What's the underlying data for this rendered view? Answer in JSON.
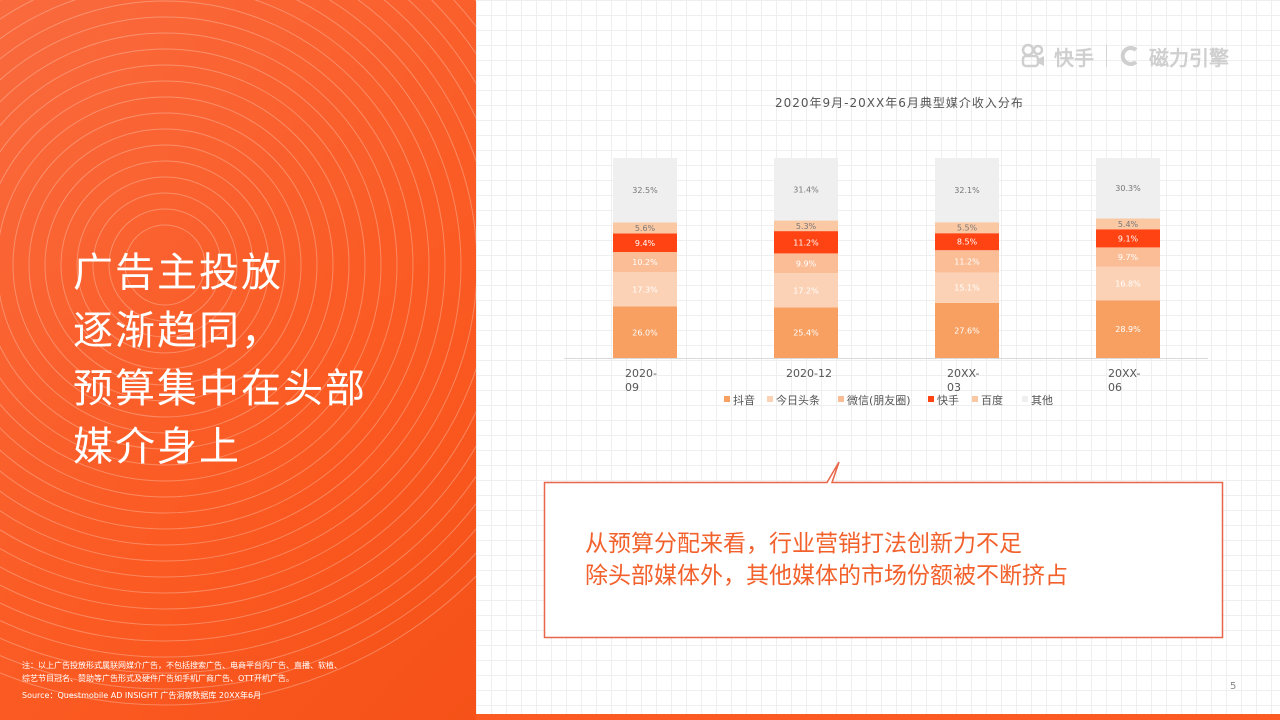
{
  "headline": [
    "广告主投放",
    "逐渐趋同，",
    "预算集中在头部",
    "媒介身上"
  ],
  "footnote": {
    "line1": "注：以上广告投放形式属联网媒介广告，不包括搜索广告、电商平台内广告、直播、软植、",
    "line2": "综艺节目冠名、赞助等广告形式及硬件广告如手机厂商广告、OTT开机广告。",
    "source": "Source：Questmobile AD INSIGHT 广告洞察数据库 20XX年6月"
  },
  "logos": {
    "kuaishou": "快手",
    "cili": "磁力引擎"
  },
  "callout": {
    "line1": "从预算分配来看，行业营销打法创新力不足",
    "line2": "除头部媒体外，其他媒体的市场份额被不断挤占"
  },
  "page_number": "5",
  "colors": {
    "accent": "#fb5a22",
    "callout_border": "#e8664a"
  },
  "chart_data": {
    "type": "bar",
    "stacked": true,
    "title": "2020年9月-20XX年6月典型媒介收入分布",
    "categories": [
      "2020-09",
      "2020-12",
      "20XX-03",
      "20XX-06"
    ],
    "category_lines": [
      [
        "2020-",
        "09"
      ],
      [
        "2020-12"
      ],
      [
        "20XX-",
        "03"
      ],
      [
        "20XX-",
        "06"
      ]
    ],
    "series": [
      {
        "name": "抖音",
        "color": "#f8a062",
        "values": [
          26.0,
          25.4,
          27.6,
          28.9
        ],
        "labels": [
          "26.0%",
          "25.4%",
          "27.6%",
          "28.9%"
        ],
        "label_color": "#ffffff"
      },
      {
        "name": "今日头条",
        "color": "#fcd2b6",
        "values": [
          17.3,
          17.2,
          15.1,
          16.8
        ],
        "labels": [
          "17.3%",
          "17.2%",
          "15.1%",
          "16.8%"
        ],
        "label_color": "#ffffff"
      },
      {
        "name": "微信(朋友圈)",
        "color": "#fbbd96",
        "values": [
          10.2,
          9.9,
          11.2,
          9.7
        ],
        "labels": [
          "10.2%",
          "9.9%",
          "11.2%",
          "9.7%"
        ],
        "label_color": "#ffffff"
      },
      {
        "name": "快手",
        "color": "#ff4313",
        "values": [
          9.4,
          11.2,
          8.5,
          9.1
        ],
        "labels": [
          "9.4%",
          "11.2%",
          "8.5%",
          "9.1%"
        ],
        "label_color": "#ffffff"
      },
      {
        "name": "百度",
        "color": "#fbc8a4",
        "values": [
          5.6,
          5.3,
          5.5,
          5.4
        ],
        "labels": [
          "5.6%",
          "5.3%",
          "5.5%",
          "5.4%"
        ],
        "label_color": "#777777"
      },
      {
        "name": "其他",
        "color": "#efefef",
        "values": [
          32.5,
          31.4,
          32.1,
          30.3
        ],
        "labels": [
          "32.5%",
          "31.4%",
          "32.1%",
          "30.3%"
        ],
        "label_color": "#777777"
      }
    ],
    "legend_position": "bottom",
    "grid": false
  }
}
